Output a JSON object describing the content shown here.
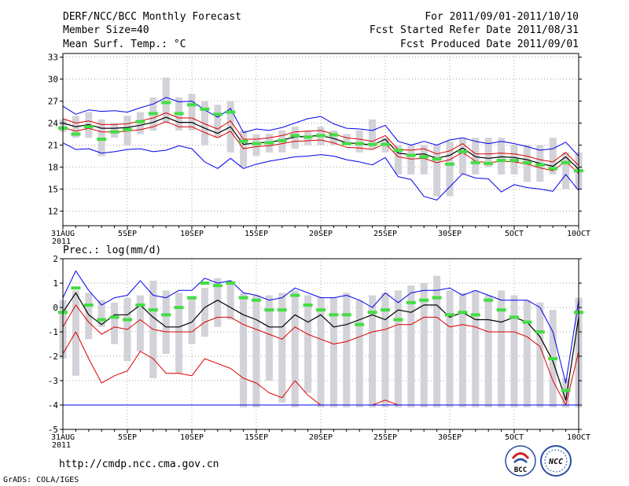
{
  "header": {
    "title_left": "DERF/NCC/BCC Monthly Forecast",
    "member_size": "Member Size=40",
    "variable": "Mean Surf. Temp.: °C",
    "for_range": "For 2011/09/01-2011/10/10",
    "fcst_started": "Fcst Started Refer Date 2011/08/31",
    "fcst_produced": "Fcst Produced Date 2011/09/01"
  },
  "footer": {
    "url": "http://cmdp.ncc.cma.gov.cn",
    "grads": "GrADS: COLA/IGES",
    "logo_bcc": "BCC",
    "logo_ncc": "NCC"
  },
  "colors": {
    "box": "#d2d2d8",
    "green": "#44dd44",
    "blue": "#0000ee",
    "red": "#dd0000",
    "black": "#000000",
    "grid": "#888888"
  },
  "x_labels": [
    "31AUG",
    "5SEP",
    "10SEP",
    "15SEP",
    "20SEP",
    "25SEP",
    "30SEP",
    "5OCT",
    "10OCT"
  ],
  "x_year": "2011",
  "chart_data": [
    {
      "type": "box",
      "title": "Mean Surf. Temp.: °C",
      "x_day_range": [
        0,
        40
      ],
      "ylim": [
        10,
        33.5
      ],
      "yticks": [
        12,
        15,
        18,
        21,
        24,
        27,
        30,
        33
      ],
      "box": {
        "low": [
          22.8,
          22,
          22,
          19.5,
          22,
          21,
          22.5,
          23,
          24,
          23,
          23,
          21,
          22,
          20,
          18,
          19.5,
          20,
          20,
          20.5,
          21,
          21,
          21,
          21,
          20,
          20.5,
          20,
          17,
          17,
          17,
          14,
          14,
          17,
          17,
          18,
          17,
          17,
          16,
          16,
          17,
          15,
          15
        ],
        "high": [
          24.5,
          25,
          25.5,
          24.5,
          24,
          25,
          25.5,
          27.5,
          30.2,
          27.5,
          28,
          27,
          26.5,
          27,
          23,
          22.5,
          22.5,
          23,
          23.5,
          23,
          23.5,
          23,
          22.5,
          23,
          24.5,
          22,
          21,
          21,
          21,
          21,
          21.5,
          22,
          22,
          22,
          22,
          21,
          21,
          21,
          22,
          20,
          20
        ]
      },
      "series": [
        {
          "name": "green",
          "values": [
            23.3,
            22.5,
            23.5,
            21.8,
            22.8,
            23.1,
            24.2,
            25.3,
            26.8,
            25.3,
            26.5,
            25.9,
            25.2,
            25.5,
            21.5,
            21.2,
            21.3,
            21.6,
            22.3,
            22.1,
            22.3,
            22.4,
            21.2,
            21.2,
            21.1,
            21.1,
            20.3,
            19.6,
            19.4,
            19.1,
            18.4,
            20.1,
            18.6,
            18.5,
            18.9,
            18.9,
            18.6,
            18.3,
            17.8,
            18.6,
            17.5
          ]
        },
        {
          "name": "blue_upper",
          "values": [
            26.3,
            25.2,
            25.8,
            25.6,
            25.7,
            25.5,
            26.1,
            26.6,
            27.5,
            26.9,
            27.0,
            25.8,
            24.8,
            26.0,
            22.7,
            23.2,
            23.0,
            23.4,
            24.0,
            24.6,
            24.9,
            23.9,
            23.3,
            23.2,
            23.0,
            23.7,
            21.5,
            21.0,
            21.5,
            21.0,
            21.7,
            22.0,
            21.5,
            21.2,
            21.5,
            21.2,
            20.8,
            20.3,
            20.5,
            21.4,
            19.5
          ]
        },
        {
          "name": "red_upper",
          "values": [
            24.6,
            24.0,
            24.3,
            23.8,
            23.8,
            23.9,
            24.3,
            24.7,
            25.4,
            24.7,
            24.7,
            23.9,
            23.2,
            24.3,
            21.8,
            21.8,
            22.0,
            22.3,
            22.8,
            22.9,
            23.0,
            22.5,
            22.0,
            21.8,
            21.5,
            22.3,
            20.4,
            20.3,
            20.5,
            19.8,
            20.2,
            21.2,
            19.8,
            19.8,
            19.9,
            19.8,
            19.5,
            19.0,
            18.7,
            20.0,
            18.2
          ]
        },
        {
          "name": "mean",
          "values": [
            24.0,
            23.5,
            23.8,
            23.3,
            23.3,
            23.4,
            23.7,
            24.1,
            24.8,
            24.1,
            24.1,
            23.3,
            22.6,
            23.5,
            21.1,
            21.3,
            21.4,
            21.7,
            22.1,
            22.2,
            22.3,
            21.9,
            21.3,
            21.2,
            21.0,
            21.8,
            19.9,
            19.7,
            19.8,
            19.2,
            19.6,
            20.6,
            19.4,
            19.2,
            19.4,
            19.3,
            19.0,
            18.5,
            18.1,
            19.4,
            17.7
          ]
        },
        {
          "name": "red_lower",
          "values": [
            23.4,
            22.9,
            23.3,
            22.8,
            22.8,
            22.9,
            23.1,
            23.5,
            24.2,
            23.5,
            23.5,
            22.7,
            22.0,
            22.9,
            20.5,
            20.8,
            20.9,
            21.2,
            21.5,
            21.6,
            21.7,
            21.3,
            20.7,
            20.6,
            20.4,
            21.2,
            19.4,
            19.1,
            19.2,
            18.6,
            19.0,
            20.0,
            18.8,
            18.6,
            18.8,
            18.7,
            18.4,
            17.9,
            17.5,
            18.8,
            17.1
          ]
        },
        {
          "name": "blue_lower",
          "values": [
            21.3,
            20.4,
            20.5,
            19.9,
            20.1,
            20.4,
            20.5,
            20.1,
            20.3,
            20.9,
            20.5,
            18.7,
            17.8,
            19.2,
            17.8,
            18.4,
            18.8,
            19.1,
            19.4,
            19.5,
            19.7,
            19.5,
            19.0,
            18.7,
            18.3,
            19.3,
            16.7,
            16.3,
            14.0,
            13.5,
            15.3,
            17.1,
            16.5,
            16.4,
            14.6,
            15.6,
            15.2,
            15.0,
            14.7,
            17.0,
            14.8
          ]
        }
      ]
    },
    {
      "type": "box",
      "title": "Prec.: log(mm/d)",
      "x_day_range": [
        0,
        40
      ],
      "ylim": [
        -5,
        2
      ],
      "yticks": [
        -5,
        -4,
        -3,
        -2,
        -1,
        0,
        1,
        2
      ],
      "box": {
        "low": [
          -2.1,
          -2.8,
          -1.3,
          -0.8,
          -1.5,
          -2.2,
          -1.8,
          -2.9,
          -1.9,
          -2.7,
          -1.5,
          -1.2,
          -0.8,
          -0.5,
          -4.1,
          -4.1,
          -3,
          -3.9,
          -4.1,
          -3.5,
          -4.1,
          -4.1,
          -4.1,
          -4.1,
          -4.1,
          -4.1,
          -4.1,
          -4.1,
          -4.1,
          -4.1,
          -4.1,
          -4.1,
          -4.1,
          -4.1,
          -4.1,
          -4.1,
          -4.1,
          -4.1,
          -4.1,
          -4.1,
          -4.1
        ],
        "high": [
          0.3,
          0.7,
          0.6,
          0.3,
          0.2,
          0.4,
          0.5,
          1.1,
          0.7,
          0.6,
          0.4,
          0.8,
          1.2,
          1.1,
          0.6,
          0.5,
          0.5,
          0.6,
          0.7,
          0.5,
          0.4,
          0.4,
          0.6,
          0.3,
          0.5,
          0.6,
          0.7,
          0.9,
          1.0,
          1.3,
          0.7,
          0.6,
          0.7,
          0.5,
          0.7,
          0.5,
          0.3,
          0.2,
          -0.1,
          -2.9,
          0.4
        ]
      },
      "series": [
        {
          "name": "green",
          "values": [
            -0.2,
            0.8,
            0.1,
            -0.5,
            -0.4,
            -0.5,
            0.1,
            -0.1,
            -0.3,
            0.0,
            0.4,
            1.0,
            0.9,
            1.0,
            0.4,
            0.3,
            -0.1,
            -0.1,
            0.5,
            0.1,
            -0.1,
            -0.3,
            -0.3,
            -0.7,
            -0.2,
            -0.1,
            -0.5,
            0.2,
            0.3,
            0.4,
            -0.3,
            -0.2,
            -0.3,
            0.3,
            -0.1,
            -0.4,
            -0.6,
            -1.0,
            -2.1,
            -3.4,
            -0.2
          ]
        },
        {
          "name": "blue_upper",
          "values": [
            0.4,
            1.5,
            0.7,
            0.1,
            0.4,
            0.5,
            1.1,
            0.5,
            0.4,
            0.7,
            0.7,
            1.2,
            1.0,
            1.1,
            0.6,
            0.5,
            0.3,
            0.4,
            0.8,
            0.6,
            0.4,
            0.4,
            0.5,
            0.3,
            0.0,
            0.6,
            0.2,
            0.6,
            0.7,
            0.7,
            0.8,
            0.5,
            0.7,
            0.5,
            0.3,
            0.3,
            0.3,
            0.0,
            -1.0,
            -3.1,
            0.3
          ]
        },
        {
          "name": "mean",
          "values": [
            -0.2,
            0.6,
            -0.3,
            -0.7,
            -0.3,
            -0.3,
            0.1,
            -0.4,
            -0.8,
            -0.8,
            -0.6,
            0.0,
            0.3,
            0.0,
            -0.3,
            -0.5,
            -0.8,
            -0.8,
            -0.3,
            -0.6,
            -0.3,
            -0.8,
            -0.7,
            -0.5,
            -0.3,
            -0.5,
            -0.1,
            -0.2,
            0.1,
            0.1,
            -0.4,
            -0.2,
            -0.5,
            -0.5,
            -0.6,
            -0.4,
            -0.6,
            -1.2,
            -2.2,
            -3.8,
            -0.4
          ]
        },
        {
          "name": "red_upper",
          "values": [
            -0.8,
            0.1,
            -0.6,
            -1.1,
            -0.8,
            -0.9,
            -0.5,
            -0.9,
            -1.0,
            -1.0,
            -1.0,
            -0.6,
            -0.4,
            -0.4,
            -0.7,
            -0.9,
            -1.1,
            -1.3,
            -0.8,
            -1.1,
            -1.3,
            -1.5,
            -1.4,
            -1.2,
            -1.0,
            -0.9,
            -0.7,
            -0.7,
            -0.4,
            -0.4,
            -0.8,
            -0.7,
            -0.8,
            -1.0,
            -1.0,
            -1.0,
            -1.2,
            -1.6,
            -3.0,
            -4.0,
            -1.8
          ]
        },
        {
          "name": "red_lower",
          "values": [
            -1.9,
            -1.0,
            -2.1,
            -3.1,
            -2.8,
            -2.6,
            -1.8,
            -2.1,
            -2.7,
            -2.7,
            -2.8,
            -2.1,
            -2.3,
            -2.5,
            -2.9,
            -3.1,
            -3.5,
            -3.7,
            -3.0,
            -3.6,
            -4.0,
            -4.0,
            -4.0,
            -4.0,
            -4.0,
            -3.8,
            -4.0,
            -4.0,
            -4.0,
            -4.0,
            -4.0,
            -4.0,
            -4.0,
            -4.0,
            -4.0,
            -4.0,
            -4.0,
            -4.0,
            -4.0,
            -4.0,
            -4.0
          ]
        },
        {
          "name": "blue_lower",
          "values": [
            -4.0,
            -4.0,
            -4.0,
            -4.0,
            -4.0,
            -4.0,
            -4.0,
            -4.0,
            -4.0,
            -4.0,
            -4.0,
            -4.0,
            -4.0,
            -4.0,
            -4.0,
            -4.0,
            -4.0,
            -4.0,
            -4.0,
            -4.0,
            -4.0,
            -4.0,
            -4.0,
            -4.0,
            -4.0,
            -4.0,
            -4.0,
            -4.0,
            -4.0,
            -4.0,
            -4.0,
            -4.0,
            -4.0,
            -4.0,
            -4.0,
            -4.0,
            -4.0,
            -4.0,
            -4.0,
            -4.0,
            -4.0
          ]
        }
      ]
    }
  ]
}
